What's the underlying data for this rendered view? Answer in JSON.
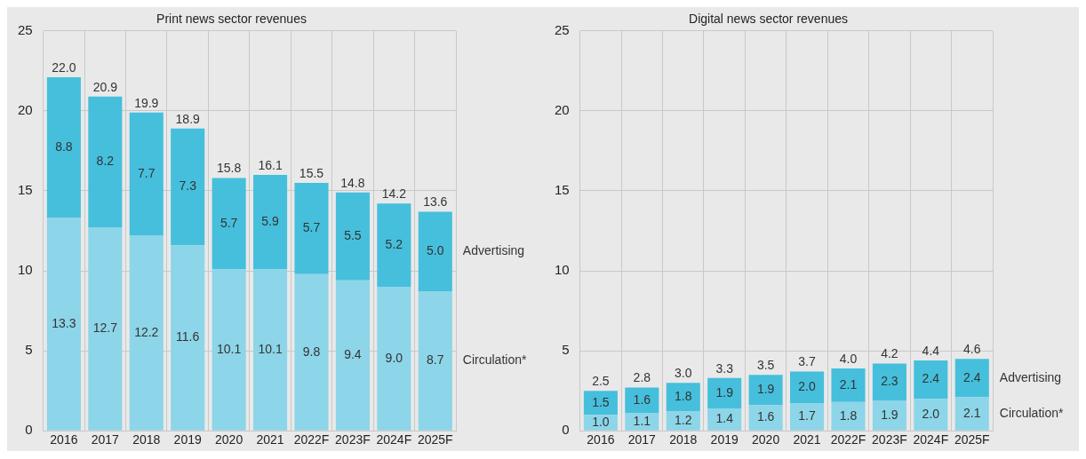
{
  "chart_data": [
    {
      "type": "bar",
      "title": "Print news sector revenues",
      "categories": [
        "2016",
        "2017",
        "2018",
        "2019",
        "2020",
        "2021",
        "2022F",
        "2023F",
        "2024F",
        "2025F"
      ],
      "stacked": true,
      "ylim": [
        0,
        25
      ],
      "yticks": [
        0,
        5,
        10,
        15,
        20,
        25
      ],
      "grid": true,
      "legend": false,
      "series": [
        {
          "name": "Circulation*",
          "color": "#8dd5e8",
          "values": [
            13.3,
            12.7,
            12.2,
            11.6,
            10.1,
            10.1,
            9.8,
            9.4,
            9.0,
            8.7
          ],
          "value_labels": [
            "13.3",
            "12.7",
            "12.2",
            "11.6",
            "10.1",
            "10.1",
            "9.8",
            "9.4",
            "9.0",
            "8.7"
          ]
        },
        {
          "name": "Advertising",
          "color": "#45bfdc",
          "values": [
            8.8,
            8.2,
            7.7,
            7.3,
            5.7,
            5.9,
            5.7,
            5.5,
            5.2,
            5.0
          ],
          "value_labels": [
            "8.8",
            "8.2",
            "7.7",
            "7.3",
            "5.7",
            "5.9",
            "5.7",
            "5.5",
            "5.2",
            "5.0"
          ]
        }
      ],
      "totals": [
        "22.0",
        "20.9",
        "19.9",
        "18.9",
        "15.8",
        "16.1",
        "15.5",
        "14.8",
        "14.2",
        "13.6"
      ]
    },
    {
      "type": "bar",
      "title": "Digital news sector revenues",
      "categories": [
        "2016",
        "2017",
        "2018",
        "2019",
        "2020",
        "2021",
        "2022F",
        "2023F",
        "2024F",
        "2025F"
      ],
      "stacked": true,
      "ylim": [
        0,
        25
      ],
      "yticks": [
        0,
        5,
        10,
        15,
        20,
        25
      ],
      "grid": true,
      "legend": false,
      "series": [
        {
          "name": "Circulation*",
          "color": "#8dd5e8",
          "values": [
            1.0,
            1.1,
            1.2,
            1.4,
            1.6,
            1.7,
            1.8,
            1.9,
            2.0,
            2.1
          ],
          "value_labels": [
            "1.0",
            "1.1",
            "1.2",
            "1.4",
            "1.6",
            "1.7",
            "1.8",
            "1.9",
            "2.0",
            "2.1"
          ]
        },
        {
          "name": "Advertising",
          "color": "#45bfdc",
          "values": [
            1.5,
            1.6,
            1.8,
            1.9,
            1.9,
            2.0,
            2.1,
            2.3,
            2.4,
            2.4
          ],
          "value_labels": [
            "1.5",
            "1.6",
            "1.8",
            "1.9",
            "1.9",
            "2.0",
            "2.1",
            "2.3",
            "2.4",
            "2.4"
          ]
        }
      ],
      "totals": [
        "2.5",
        "2.8",
        "3.0",
        "3.3",
        "3.5",
        "3.7",
        "4.0",
        "4.2",
        "4.4",
        "4.6"
      ]
    }
  ]
}
